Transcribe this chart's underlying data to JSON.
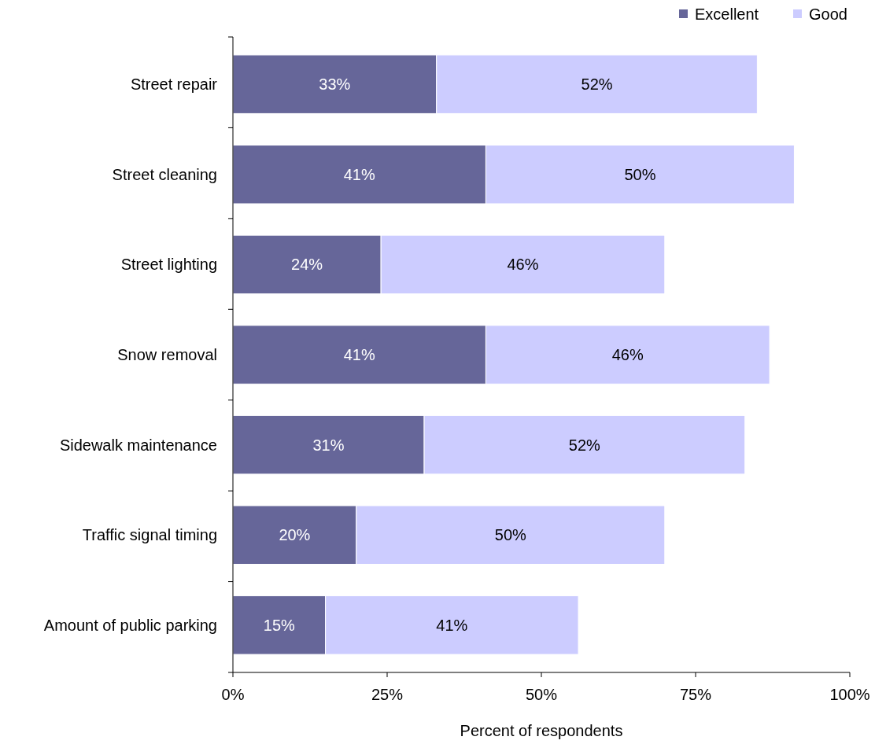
{
  "chart_data": {
    "type": "bar",
    "orientation": "horizontal",
    "stacked": true,
    "xlabel": "Percent of respondents",
    "categories": [
      "Street repair",
      "Street cleaning",
      "Street lighting",
      "Snow removal",
      "Sidewalk maintenance",
      "Traffic signal timing",
      "Amount of public parking"
    ],
    "series": [
      {
        "name": "Excellent",
        "color": "#666699",
        "values": [
          33,
          41,
          24,
          41,
          31,
          20,
          15
        ],
        "value_labels": [
          "33%",
          "41%",
          "24%",
          "41%",
          "31%",
          "20%",
          "15%"
        ]
      },
      {
        "name": "Good",
        "color": "#ccccff",
        "values": [
          52,
          50,
          46,
          46,
          52,
          50,
          41
        ],
        "value_labels": [
          "52%",
          "50%",
          "46%",
          "46%",
          "52%",
          "50%",
          "41%"
        ]
      }
    ],
    "xlim": [
      0,
      100
    ],
    "xticks": [
      {
        "value": 0,
        "label": "0%"
      },
      {
        "value": 25,
        "label": "25%"
      },
      {
        "value": 50,
        "label": "50%"
      },
      {
        "value": 75,
        "label": "75%"
      },
      {
        "value": 100,
        "label": "100%"
      }
    ],
    "grid": false,
    "legend": "top right"
  }
}
